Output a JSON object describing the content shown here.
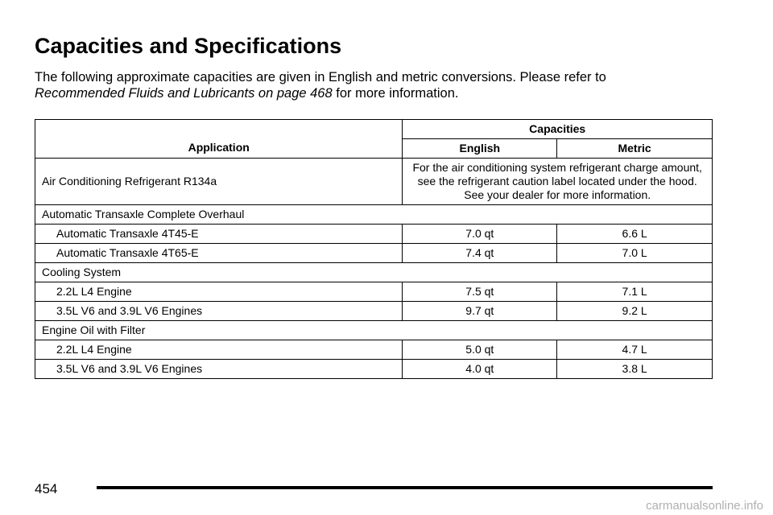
{
  "title": "Capacities and Specifications",
  "intro": {
    "text": "The following approximate capacities are given in English and metric conversions. Please refer to",
    "link": "Recommended Fluids and Lubricants on page 468",
    "after": "for more information."
  },
  "table": {
    "headers": {
      "application": "Application",
      "capacities": "Capacities",
      "english": "English",
      "metric": "Metric"
    },
    "rows": [
      [
        "Air Conditioning Refrigerant R134a",
        "For the air conditioning system refrigerant charge amount, see the refrigerant caution label located under the hood. See your dealer for more information."
      ],
      [
        "Automatic Transaxle Complete Overhaul"
      ],
      [
        "Automatic Transaxle 4T45-E",
        "7.0 qt",
        "6.6 L"
      ],
      [
        "Automatic Transaxle 4T65-E",
        "7.4 qt",
        "7.0 L"
      ],
      [
        "Cooling System"
      ],
      [
        "2.2L L4 Engine",
        "7.5 qt",
        "7.1 L"
      ],
      [
        "3.5L V6 and 3.9L V6 Engines",
        "9.7 qt",
        "9.2 L"
      ],
      [
        "Engine Oil with Filter"
      ],
      [
        "2.2L L4 Engine",
        "5.0 qt",
        "4.7 L"
      ],
      [
        "3.5L V6 and 3.9L V6 Engines",
        "4.0 qt",
        "3.8 L"
      ]
    ]
  },
  "page_number": "454",
  "watermark": "carmanualsonline.info"
}
